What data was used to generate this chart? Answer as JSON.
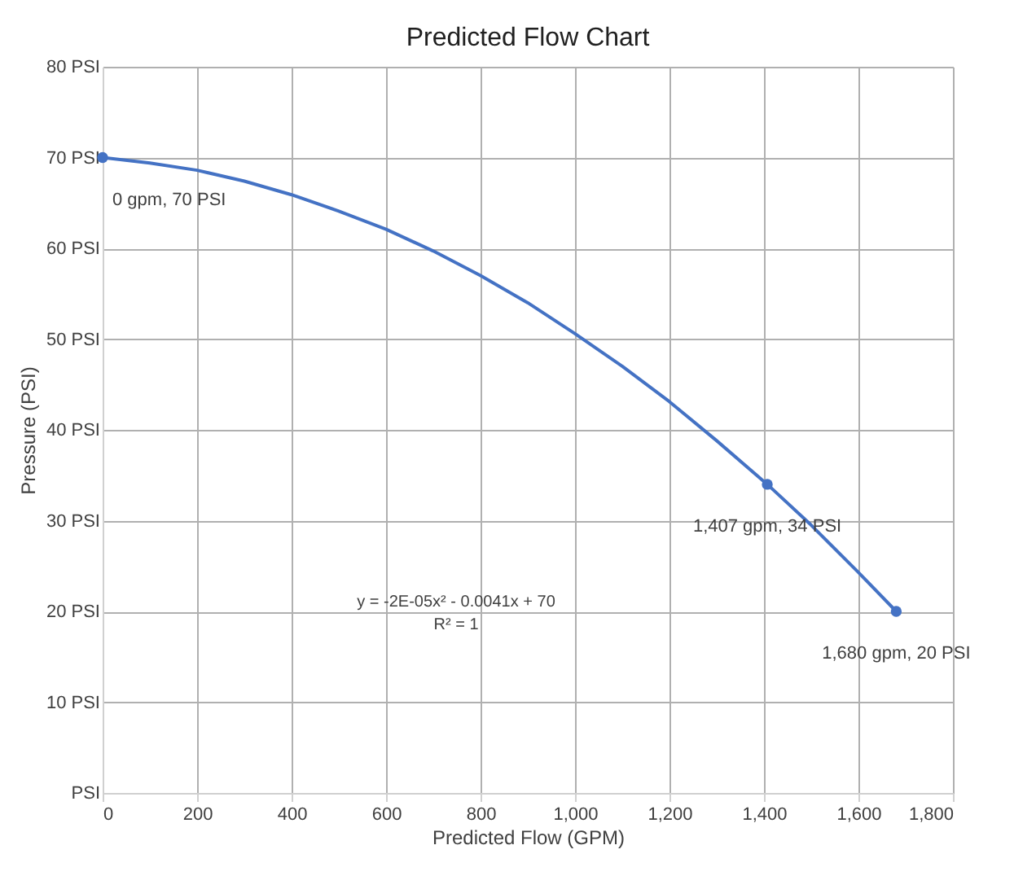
{
  "chart_data": {
    "type": "scatter",
    "title": "Predicted Flow Chart",
    "xlabel": "Predicted Flow (GPM)",
    "ylabel": "Pressure (PSI)",
    "series": [
      {
        "type": "line",
        "color": "#4472c4",
        "marker": "none",
        "x": [
          0,
          100,
          200,
          300,
          400,
          500,
          600,
          700,
          800,
          900,
          1000,
          1100,
          1200,
          1300,
          1407,
          1500,
          1600,
          1680
        ],
        "values": [
          70,
          69.4,
          68.6,
          67.4,
          65.9,
          64.1,
          62.1,
          59.7,
          57.0,
          54.0,
          50.6,
          47.0,
          43.1,
          38.8,
          34,
          29.5,
          24.3,
          20
        ]
      },
      {
        "color": "#4472c4",
        "marker": "circle",
        "x": [
          0,
          1407,
          1680
        ],
        "values": [
          70,
          34,
          20
        ]
      }
    ],
    "xlim": [
      0,
      1800
    ],
    "xticks": [
      0,
      200,
      400,
      600,
      800,
      {
        "value": 1000,
        "label": "1,000"
      },
      {
        "value": 1200,
        "label": "1,200"
      },
      {
        "value": 1400,
        "label": "1,400"
      },
      {
        "value": 1600,
        "label": "1,600"
      },
      {
        "value": 1800,
        "label": "1,800"
      }
    ],
    "ylim": [
      0,
      80
    ],
    "yticks": [
      {
        "value": 0,
        "label": "PSI"
      },
      {
        "value": 10,
        "label": "10 PSI"
      },
      {
        "value": 20,
        "label": "20 PSI"
      },
      {
        "value": 30,
        "label": "30 PSI"
      },
      {
        "value": 40,
        "label": "40 PSI"
      },
      {
        "value": 50,
        "label": "50 PSI"
      },
      {
        "value": 60,
        "label": "60 PSI"
      },
      {
        "value": 70,
        "label": "70 PSI"
      },
      {
        "value": 80,
        "label": "80 PSI"
      }
    ],
    "annotations": [
      {
        "text": "0 gpm, 70 PSI",
        "x": 0,
        "y": 70
      },
      {
        "text": "1,407 gpm, 34 PSI",
        "x": 1407,
        "y": 34
      },
      {
        "text": "1,680 gpm, 20 PSI",
        "x": 1680,
        "y": 20
      },
      "y = -2E-05x² - 0.0041x + 70",
      "R² = 1"
    ],
    "grid": true,
    "legend": false
  }
}
